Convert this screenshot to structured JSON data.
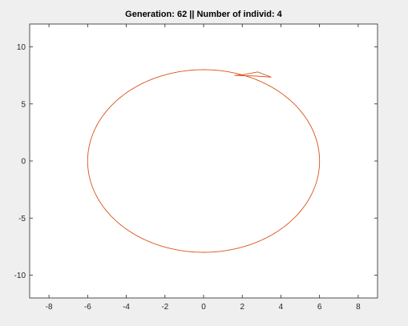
{
  "chart_data": {
    "type": "line",
    "title": "Generation: 62 || Number of individ: 4",
    "xlabel": "",
    "ylabel": "",
    "xlim": [
      -9,
      9
    ],
    "ylim": [
      -12,
      12
    ],
    "xticks": [
      -8,
      -6,
      -4,
      -2,
      0,
      2,
      4,
      6,
      8
    ],
    "yticks": [
      -10,
      -5,
      0,
      5,
      10
    ],
    "xtick_labels": [
      "-8",
      "-6",
      "-4",
      "-2",
      "0",
      "2",
      "4",
      "6",
      "8"
    ],
    "ytick_labels": [
      "-10",
      "-5",
      "0",
      "5",
      "10"
    ],
    "grid": false,
    "legend": "none",
    "line_color": "#d95319",
    "background": "#ffffff",
    "figure_background": "#efefef",
    "series": [
      {
        "shape": "ellipse",
        "center": [
          0,
          0
        ],
        "semi_axes": [
          6,
          8
        ],
        "x": [
          6,
          5.8,
          5.2,
          4.24,
          3,
          1.55,
          0,
          -1.55,
          -3,
          -4.24,
          -5.2,
          -5.8,
          -6,
          -5.8,
          -5.2,
          -4.24,
          -3,
          -1.55,
          0,
          1.55,
          3,
          4.24,
          5.2,
          5.8,
          6
        ],
        "y": [
          0,
          2.07,
          4,
          5.66,
          6.93,
          7.73,
          8,
          7.73,
          6.93,
          5.66,
          4,
          2.07,
          0,
          -2.07,
          -4,
          -5.66,
          -6.93,
          -7.73,
          -8,
          -7.73,
          -6.93,
          -5.66,
          -4,
          -2.07,
          0
        ]
      },
      {
        "shape": "polyline",
        "x": [
          1.6,
          2.0,
          2.8,
          3.5,
          2.6,
          1.6
        ],
        "y": [
          7.5,
          7.55,
          7.8,
          7.35,
          7.45,
          7.5
        ]
      }
    ]
  }
}
